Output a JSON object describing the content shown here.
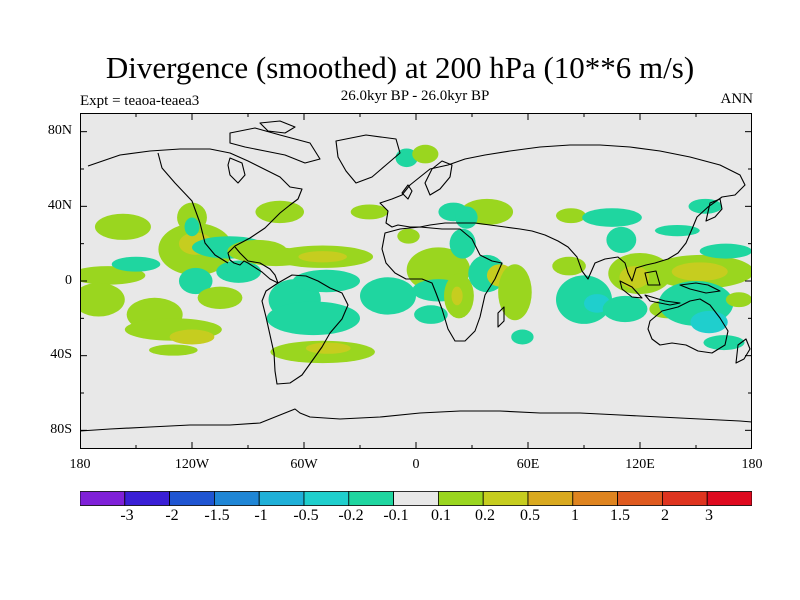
{
  "title": "Divergence (smoothed) at 200 hPa (10**6 m/s)",
  "left_label": "Expt = teaoa-teaea3",
  "center_label": "26.0kyr BP - 26.0kyr BP",
  "right_label": "ANN",
  "y_ticks": [
    "80N",
    "40N",
    "0",
    "40S",
    "80S"
  ],
  "x_ticks": [
    "180",
    "120W",
    "60W",
    "0",
    "60E",
    "120E",
    "180"
  ],
  "colorbar": {
    "labels": [
      "-3",
      "-2",
      "-1.5",
      "-1",
      "-0.5",
      "-0.2",
      "-0.1",
      "0.1",
      "0.2",
      "0.5",
      "1",
      "1.5",
      "2",
      "3"
    ],
    "colors": [
      "#7f20d8",
      "#3a1fd6",
      "#1f55d2",
      "#1f86d6",
      "#1fb0d8",
      "#1fcfcd",
      "#1fd6a0",
      "#e8e8e8",
      "#9ad61f",
      "#c6cd1f",
      "#d9a91f",
      "#df841f",
      "#df5a1f",
      "#df341f",
      "#df0a1f"
    ]
  },
  "colors": {
    "background": "#e8e8e8",
    "coast": "#000000"
  },
  "chart_data": {
    "type": "map",
    "variable": "Divergence (smoothed) at 200 hPa",
    "units": "10**6 m/s",
    "lon_range": [
      -180,
      180
    ],
    "lat_range": [
      -90,
      90
    ],
    "regions": [
      {
        "lon": -165,
        "lat": 3,
        "rx": 20,
        "ry": 5,
        "level": 1
      },
      {
        "lon": -172,
        "lat": -10,
        "rx": 8,
        "ry": 5,
        "level": 2
      },
      {
        "lon": -170,
        "lat": -10,
        "rx": 14,
        "ry": 9,
        "level": 1
      },
      {
        "lon": -157,
        "lat": 29,
        "rx": 15,
        "ry": 7,
        "level": 1
      },
      {
        "lon": -150,
        "lat": 9,
        "rx": 13,
        "ry": 4,
        "level": -1
      },
      {
        "lon": -140,
        "lat": -18,
        "rx": 15,
        "ry": 9,
        "level": 1
      },
      {
        "lon": -130,
        "lat": -26,
        "rx": 26,
        "ry": 6,
        "level": 1
      },
      {
        "lon": -120,
        "lat": -30,
        "rx": 12,
        "ry": 4,
        "level": 2
      },
      {
        "lon": -130,
        "lat": -37,
        "rx": 13,
        "ry": 3,
        "level": 1
      },
      {
        "lon": -118,
        "lat": 17,
        "rx": 20,
        "ry": 14,
        "level": 1
      },
      {
        "lon": -118,
        "lat": 20,
        "rx": 9,
        "ry": 6,
        "level": 2
      },
      {
        "lon": -120,
        "lat": 34,
        "rx": 8,
        "ry": 8,
        "level": 1
      },
      {
        "lon": -120,
        "lat": 29,
        "rx": 4,
        "ry": 5,
        "level": -1
      },
      {
        "lon": -118,
        "lat": 0,
        "rx": 9,
        "ry": 7,
        "level": -1
      },
      {
        "lon": -105,
        "lat": -9,
        "rx": 12,
        "ry": 6,
        "level": 1
      },
      {
        "lon": -100,
        "lat": 18,
        "rx": 20,
        "ry": 6,
        "level": -1
      },
      {
        "lon": -95,
        "lat": 5,
        "rx": 12,
        "ry": 6,
        "level": -1
      },
      {
        "lon": -85,
        "lat": 16,
        "rx": 16,
        "ry": 6,
        "level": 1
      },
      {
        "lon": -75,
        "lat": 13,
        "rx": 18,
        "ry": 5,
        "level": 1
      },
      {
        "lon": -73,
        "lat": 37,
        "rx": 13,
        "ry": 6,
        "level": 1
      },
      {
        "lon": -65,
        "lat": -10,
        "rx": 14,
        "ry": 11,
        "level": -1
      },
      {
        "lon": -50,
        "lat": 13,
        "rx": 27,
        "ry": 6,
        "level": 1
      },
      {
        "lon": -50,
        "lat": 13,
        "rx": 13,
        "ry": 3,
        "level": 2
      },
      {
        "lon": -48,
        "lat": 0,
        "rx": 18,
        "ry": 6,
        "level": -1
      },
      {
        "lon": -55,
        "lat": -20,
        "rx": 25,
        "ry": 9,
        "level": -1
      },
      {
        "lon": -50,
        "lat": -38,
        "rx": 28,
        "ry": 6,
        "level": 1
      },
      {
        "lon": -47,
        "lat": -36,
        "rx": 12,
        "ry": 3,
        "level": 2
      },
      {
        "lon": -25,
        "lat": 37,
        "rx": 10,
        "ry": 4,
        "level": 1
      },
      {
        "lon": -5,
        "lat": 66,
        "rx": 6,
        "ry": 5,
        "level": -1
      },
      {
        "lon": 5,
        "lat": 68,
        "rx": 7,
        "ry": 5,
        "level": 1
      },
      {
        "lon": -15,
        "lat": -8,
        "rx": 15,
        "ry": 10,
        "level": -1
      },
      {
        "lon": -4,
        "lat": 24,
        "rx": 6,
        "ry": 4,
        "level": 1
      },
      {
        "lon": 12,
        "lat": 6,
        "rx": 17,
        "ry": 12,
        "level": 1
      },
      {
        "lon": 12,
        "lat": -5,
        "rx": 14,
        "ry": 6,
        "level": -1
      },
      {
        "lon": 8,
        "lat": -18,
        "rx": 9,
        "ry": 5,
        "level": -1
      },
      {
        "lon": 25,
        "lat": 20,
        "rx": 7,
        "ry": 8,
        "level": -1
      },
      {
        "lon": 23,
        "lat": -8,
        "rx": 8,
        "ry": 12,
        "level": 1
      },
      {
        "lon": 22,
        "lat": -8,
        "rx": 3,
        "ry": 5,
        "level": 2
      },
      {
        "lon": 38,
        "lat": 4,
        "rx": 10,
        "ry": 10,
        "level": -1
      },
      {
        "lon": 38,
        "lat": 37,
        "rx": 14,
        "ry": 7,
        "level": 1
      },
      {
        "lon": 45,
        "lat": 3,
        "rx": 7,
        "ry": 6,
        "level": 2
      },
      {
        "lon": 53,
        "lat": -6,
        "rx": 9,
        "ry": 15,
        "level": 1
      },
      {
        "lon": 20,
        "lat": 37,
        "rx": 8,
        "ry": 5,
        "level": -1
      },
      {
        "lon": 27,
        "lat": 34,
        "rx": 6,
        "ry": 6,
        "level": -1
      },
      {
        "lon": 57,
        "lat": -30,
        "rx": 6,
        "ry": 4,
        "level": -1
      },
      {
        "lon": 83,
        "lat": 35,
        "rx": 8,
        "ry": 4,
        "level": 1
      },
      {
        "lon": 82,
        "lat": 8,
        "rx": 9,
        "ry": 5,
        "level": 1
      },
      {
        "lon": 90,
        "lat": -10,
        "rx": 15,
        "ry": 13,
        "level": -1
      },
      {
        "lon": 97,
        "lat": -12,
        "rx": 7,
        "ry": 5,
        "level": -2
      },
      {
        "lon": 105,
        "lat": 34,
        "rx": 16,
        "ry": 5,
        "level": -1
      },
      {
        "lon": 110,
        "lat": 22,
        "rx": 8,
        "ry": 7,
        "level": -1
      },
      {
        "lon": 120,
        "lat": 4,
        "rx": 17,
        "ry": 11,
        "level": 1
      },
      {
        "lon": 117,
        "lat": 2,
        "rx": 8,
        "ry": 6,
        "level": 2
      },
      {
        "lon": 112,
        "lat": -15,
        "rx": 12,
        "ry": 7,
        "level": -1
      },
      {
        "lon": 135,
        "lat": -15,
        "rx": 10,
        "ry": 5,
        "level": 1
      },
      {
        "lon": 140,
        "lat": 27,
        "rx": 12,
        "ry": 3,
        "level": -1
      },
      {
        "lon": 153,
        "lat": 5,
        "rx": 28,
        "ry": 9,
        "level": 1
      },
      {
        "lon": 152,
        "lat": 5,
        "rx": 15,
        "ry": 5,
        "level": 2
      },
      {
        "lon": 150,
        "lat": -12,
        "rx": 20,
        "ry": 12,
        "level": -1
      },
      {
        "lon": 157,
        "lat": -22,
        "rx": 10,
        "ry": 6,
        "level": -2
      },
      {
        "lon": 155,
        "lat": 40,
        "rx": 9,
        "ry": 4,
        "level": -1
      },
      {
        "lon": 166,
        "lat": 16,
        "rx": 14,
        "ry": 4,
        "level": -1
      },
      {
        "lon": 165,
        "lat": -33,
        "rx": 11,
        "ry": 4,
        "level": -1
      },
      {
        "lon": 173,
        "lat": -10,
        "rx": 7,
        "ry": 4,
        "level": 1
      }
    ]
  }
}
